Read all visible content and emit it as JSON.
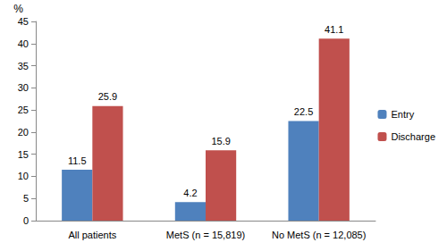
{
  "chart_data": {
    "type": "bar",
    "ylabel": "%",
    "categories": [
      "All patients",
      "MetS (n = 15,819)",
      "No MetS (n = 12,085)"
    ],
    "series": [
      {
        "name": "Entry",
        "color": "#4f81bd",
        "values": [
          11.5,
          4.2,
          22.5
        ]
      },
      {
        "name": "Discharge",
        "color": "#c0504d",
        "values": [
          25.9,
          15.9,
          41.1
        ]
      }
    ],
    "ylim": [
      0,
      45
    ],
    "yticks": [
      0,
      5,
      10,
      15,
      20,
      25,
      30,
      35,
      40,
      45
    ],
    "grid": false,
    "legend": "right",
    "data_labels": true
  }
}
